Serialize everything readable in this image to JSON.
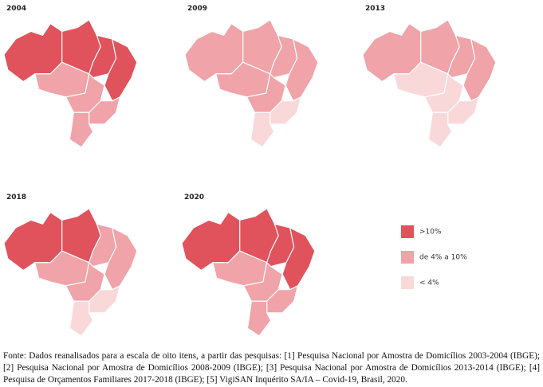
{
  "maps": [
    {
      "year": "2004"
    },
    {
      "year": "2009"
    },
    {
      "year": "2013"
    },
    {
      "year": "2018"
    },
    {
      "year": "2020"
    }
  ],
  "legend": [
    {
      "label": ">10%",
      "color": "#e0535c"
    },
    {
      "label": "de 4% a 10%",
      "color": "#f0a3a8"
    },
    {
      "label": "< 4%",
      "color": "#f9d8da"
    }
  ],
  "source": "Fonte: Dados reanalisados para a escala de oito itens, a partir das pesquisas: [1] Pesquisa Nacional por Amostra de Domicílios 2003-2004 (IBGE); [2] Pesquisa Nacional por Amostra de Domicílios 2008-2009 (IBGE); [3] Pesquisa Nacional por Amostra de Domicílios 2013-2014 (IBGE); [4] Pesquisa de Orçamentos Familiares 2017-2018 (IBGE); [5] VigiSAN Inquérito SA/IA – Covid-19, Brasil, 2020."
}
